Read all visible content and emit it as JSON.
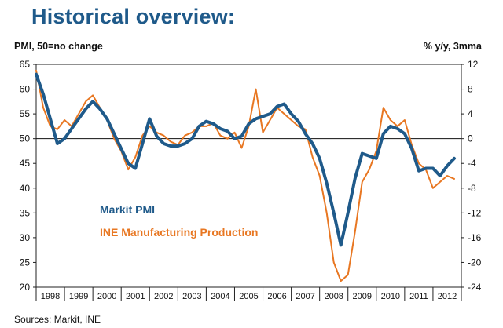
{
  "page": {
    "title": "Historical overview:",
    "left_axis_label": "PMI, 50=no change",
    "right_axis_label": "% y/y, 3mma",
    "source": "Sources: Markit, INE"
  },
  "chart_data": {
    "type": "line",
    "title": "Historical overview:",
    "x": [
      1998.0,
      1998.25,
      1998.5,
      1998.75,
      1999.0,
      1999.25,
      1999.5,
      1999.75,
      2000.0,
      2000.25,
      2000.5,
      2000.75,
      2001.0,
      2001.25,
      2001.5,
      2001.75,
      2002.0,
      2002.25,
      2002.5,
      2002.75,
      2003.0,
      2003.25,
      2003.5,
      2003.75,
      2004.0,
      2004.25,
      2004.5,
      2004.75,
      2005.0,
      2005.25,
      2005.5,
      2005.75,
      2006.0,
      2006.25,
      2006.5,
      2006.75,
      2007.0,
      2007.25,
      2007.5,
      2007.75,
      2008.0,
      2008.25,
      2008.5,
      2008.75,
      2009.0,
      2009.25,
      2009.5,
      2009.75,
      2010.0,
      2010.25,
      2010.5,
      2010.75,
      2011.0,
      2011.25,
      2011.5,
      2011.75,
      2012.0,
      2012.25,
      2012.5,
      2012.75
    ],
    "x_tick_labels": [
      "1998",
      "1999",
      "2000",
      "2001",
      "2002",
      "2003",
      "2004",
      "2005",
      "2006",
      "2007",
      "2008",
      "2009",
      "2010",
      "2011",
      "2012"
    ],
    "left_axis": {
      "label": "PMI, 50=no change",
      "ylim": [
        20,
        65
      ],
      "ticks": [
        20,
        25,
        30,
        35,
        40,
        45,
        50,
        55,
        60,
        65
      ]
    },
    "right_axis": {
      "label": "% y/y, 3mma",
      "ylim": [
        -24,
        12
      ],
      "ticks": [
        -24,
        -20,
        -16,
        -12,
        -8,
        -4,
        0,
        4,
        8,
        12
      ]
    },
    "reference_line": {
      "axis": "right",
      "value": 0
    },
    "series": [
      {
        "name": "Markit PMI",
        "axis": "left",
        "color": "#1f5a8a",
        "values": [
          63,
          59,
          54,
          49,
          50,
          52,
          54,
          56,
          57.5,
          56,
          54,
          51,
          48,
          45,
          44,
          49,
          54,
          50.5,
          49,
          48.5,
          48.5,
          49,
          50,
          52.5,
          53.5,
          53,
          52,
          51.5,
          50,
          50.5,
          53,
          54,
          54.5,
          55,
          56.5,
          57,
          55,
          53.5,
          51,
          49,
          46,
          41,
          35,
          28.5,
          35,
          42,
          47,
          46.5,
          46,
          51,
          52.5,
          52,
          51,
          48,
          43.5,
          44,
          44,
          42.5,
          44.5,
          46
        ]
      },
      {
        "name": "INE Manufacturing Production",
        "axis": "right",
        "color": "#e87722",
        "values": [
          11,
          5,
          2,
          1.5,
          3,
          2,
          4,
          6,
          7,
          5,
          3,
          0,
          -2,
          -5,
          -3,
          0.5,
          2,
          1,
          0.5,
          -0.5,
          -1,
          0.5,
          1,
          2,
          2,
          2.5,
          0.5,
          0,
          1,
          -1.5,
          2,
          8,
          1,
          3,
          5,
          4,
          3,
          2,
          1.5,
          -3,
          -6,
          -12,
          -20,
          -23,
          -22,
          -15,
          -7,
          -5,
          -2,
          5,
          3,
          2,
          3,
          -1,
          -4,
          -5,
          -8,
          -7,
          -6,
          -6.5
        ]
      }
    ],
    "legend": [
      {
        "label": "Markit PMI",
        "color": "#1f5a8a"
      },
      {
        "label": "INE Manufacturing Production",
        "color": "#e87722"
      }
    ]
  }
}
